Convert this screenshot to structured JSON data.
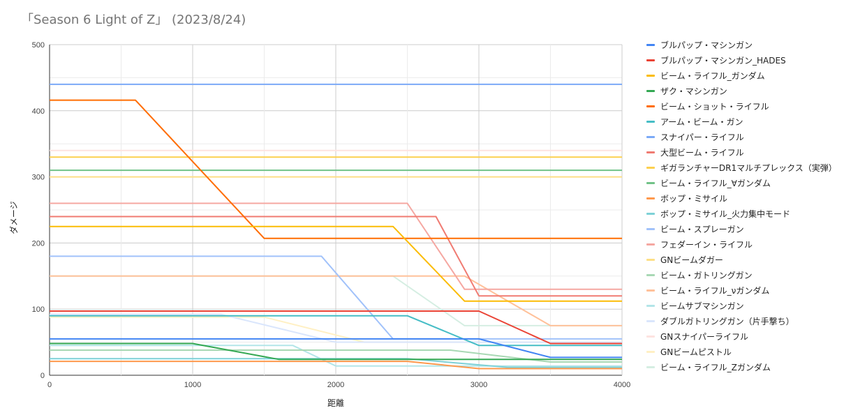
{
  "chart_data": {
    "type": "line",
    "title": "「Season 6 Light of Z」 (2023/8/24)",
    "xlabel": "距離",
    "ylabel": "ダメージ",
    "xlim": [
      0,
      4000
    ],
    "ylim": [
      0,
      500
    ],
    "x_ticks": [
      "0",
      "1000",
      "2000",
      "3000",
      "4000"
    ],
    "y_ticks": [
      "0",
      "100",
      "200",
      "300",
      "400",
      "500"
    ],
    "grid": true,
    "legend_position": "right",
    "series": [
      {
        "name": "ブルパップ・マシンガン",
        "color": "#4285f4",
        "points": [
          [
            0,
            55
          ],
          [
            3000,
            55
          ],
          [
            3500,
            27
          ],
          [
            4000,
            27
          ]
        ]
      },
      {
        "name": "ブルパップ・マシンガン_HADES",
        "color": "#ea4335",
        "points": [
          [
            0,
            97
          ],
          [
            3000,
            97
          ],
          [
            3500,
            48
          ],
          [
            4000,
            48
          ]
        ]
      },
      {
        "name": "ビーム・ライフル_ガンダム",
        "color": "#fbbc04",
        "points": [
          [
            0,
            225
          ],
          [
            2400,
            225
          ],
          [
            2900,
            112
          ],
          [
            4000,
            112
          ]
        ]
      },
      {
        "name": "ザク・マシンガン",
        "color": "#34a853",
        "points": [
          [
            0,
            48
          ],
          [
            1000,
            48
          ],
          [
            1600,
            24
          ],
          [
            4000,
            24
          ]
        ]
      },
      {
        "name": "ビーム・ショット・ライフル",
        "color": "#ff6d01",
        "points": [
          [
            0,
            416
          ],
          [
            600,
            416
          ],
          [
            1500,
            207
          ],
          [
            4000,
            207
          ]
        ]
      },
      {
        "name": "アーム・ビーム・ガン",
        "color": "#46bdc6",
        "points": [
          [
            0,
            90
          ],
          [
            1500,
            90
          ],
          [
            2500,
            90
          ],
          [
            3000,
            45
          ],
          [
            4000,
            45
          ]
        ]
      },
      {
        "name": "スナイパー・ライフル",
        "color": "#7baaf7",
        "points": [
          [
            0,
            440
          ],
          [
            4000,
            440
          ]
        ]
      },
      {
        "name": "大型ビーム・ライフル",
        "color": "#f07b72",
        "points": [
          [
            0,
            240
          ],
          [
            2700,
            240
          ],
          [
            3000,
            120
          ],
          [
            4000,
            120
          ]
        ]
      },
      {
        "name": "ギガランチャーDR1マルチプレックス（実弾）",
        "color": "#fcd04f",
        "points": [
          [
            0,
            330
          ],
          [
            4000,
            330
          ]
        ]
      },
      {
        "name": "ビーム・ライフル_∀ガンダム",
        "color": "#71c287",
        "points": [
          [
            0,
            310
          ],
          [
            4000,
            310
          ]
        ]
      },
      {
        "name": "ボップ・ミサイル",
        "color": "#ff994d",
        "points": [
          [
            0,
            21
          ],
          [
            2500,
            21
          ],
          [
            3000,
            10
          ],
          [
            4000,
            10
          ]
        ]
      },
      {
        "name": "ボップ・ミサイル_火力集中モード",
        "color": "#7ed1d7",
        "points": [
          [
            0,
            25
          ],
          [
            2500,
            25
          ],
          [
            3200,
            12
          ],
          [
            4000,
            12
          ]
        ]
      },
      {
        "name": "ビーム・スプレーガン",
        "color": "#a1c2fa",
        "points": [
          [
            0,
            180
          ],
          [
            1900,
            180
          ],
          [
            2400,
            55
          ],
          [
            4000,
            55
          ]
        ]
      },
      {
        "name": "フェダーイン・ライフル",
        "color": "#f5a7a1",
        "points": [
          [
            0,
            260
          ],
          [
            2500,
            260
          ],
          [
            2900,
            130
          ],
          [
            4000,
            130
          ]
        ]
      },
      {
        "name": "GNビームダガー",
        "color": "#fddf86",
        "points": [
          [
            0,
            300
          ],
          [
            4000,
            300
          ]
        ]
      },
      {
        "name": "ビーム・ガトリングガン",
        "color": "#a8d8b4",
        "points": [
          [
            0,
            38
          ],
          [
            2800,
            38
          ],
          [
            3500,
            20
          ],
          [
            4000,
            20
          ]
        ]
      },
      {
        "name": "ビーム・ライフル_νガンダム",
        "color": "#ffc19a",
        "points": [
          [
            0,
            150
          ],
          [
            2900,
            150
          ],
          [
            3500,
            75
          ],
          [
            4000,
            75
          ]
        ]
      },
      {
        "name": "ビームサブマシンガン",
        "color": "#b3e5e8",
        "points": [
          [
            0,
            45
          ],
          [
            1700,
            45
          ],
          [
            2000,
            14
          ],
          [
            4000,
            14
          ]
        ]
      },
      {
        "name": "ダブルガトリングガン（片手撃ち）",
        "color": "#dae6fc",
        "points": [
          [
            0,
            92
          ],
          [
            1200,
            92
          ],
          [
            2000,
            50
          ],
          [
            4000,
            50
          ]
        ]
      },
      {
        "name": "GNスナイパーライフル",
        "color": "#fde3e0",
        "points": [
          [
            0,
            340
          ],
          [
            4000,
            340
          ]
        ]
      },
      {
        "name": "GNビームピストル",
        "color": "#fff0c4",
        "points": [
          [
            0,
            88
          ],
          [
            1500,
            88
          ],
          [
            2200,
            50
          ],
          [
            4000,
            50
          ]
        ]
      },
      {
        "name": "ビーム・ライフル_Zガンダム",
        "color": "#d5eee2",
        "points": [
          [
            0,
            150
          ],
          [
            2400,
            150
          ],
          [
            2900,
            75
          ],
          [
            4000,
            75
          ]
        ]
      }
    ]
  }
}
